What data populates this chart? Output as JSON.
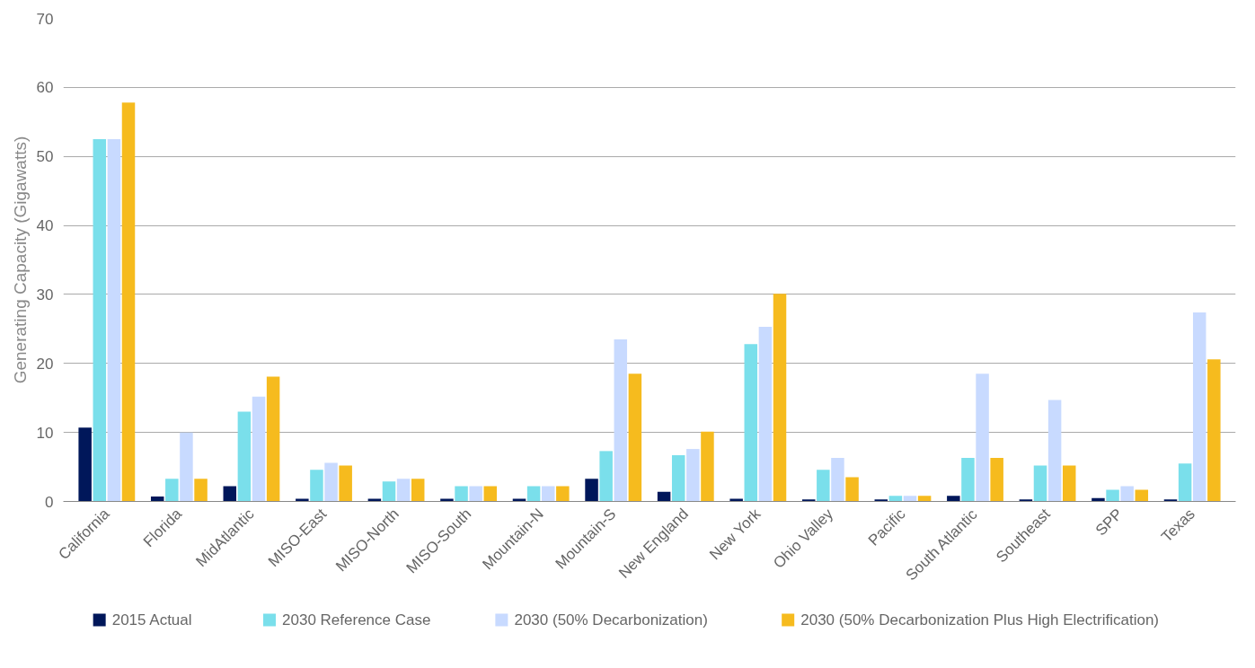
{
  "chart_data": {
    "type": "bar",
    "ylabel": "Generating Capacity (Gigawatts)",
    "categories": [
      "California",
      "Florida",
      "MidAtlantic",
      "MISO-East",
      "MISO-North",
      "MISO-South",
      "Mountain-N",
      "Mountain-S",
      "New England",
      "New York",
      "Ohio Valley",
      "Pacific",
      "South Atlantic",
      "Southeast",
      "SPP",
      "Texas"
    ],
    "series": [
      {
        "name": "2015 Actual",
        "color": "#00175a",
        "values": [
          10.7,
          0.7,
          2.2,
          0.4,
          0.4,
          0.4,
          0.4,
          3.3,
          1.4,
          0.4,
          0.3,
          0.3,
          0.8,
          0.3,
          0.5,
          0.3
        ]
      },
      {
        "name": "2030 Reference Case",
        "color": "#7adfeb",
        "values": [
          52.5,
          3.3,
          13,
          4.6,
          2.9,
          2.2,
          2.2,
          7.3,
          6.7,
          22.8,
          4.6,
          0.8,
          6.3,
          5.2,
          1.7,
          5.5
        ]
      },
      {
        "name": "2030 (50% Decarbonization)",
        "color": "#c8daff",
        "values": [
          52.5,
          10,
          15.2,
          5.6,
          3.3,
          2.2,
          2.2,
          23.5,
          7.6,
          25.3,
          6.3,
          0.8,
          18.5,
          14.7,
          2.2,
          27.4
        ]
      },
      {
        "name": "2030 (50% Decarbonization Plus High Electrification)",
        "color": "#f6bb1e",
        "values": [
          57.8,
          3.3,
          18.1,
          5.2,
          3.3,
          2.2,
          2.2,
          18.5,
          10.1,
          30.1,
          3.5,
          0.8,
          6.3,
          5.2,
          1.7,
          20.6
        ]
      }
    ],
    "ylim": [
      0,
      70
    ],
    "yticks": [
      0,
      10,
      20,
      30,
      40,
      50,
      60,
      70
    ],
    "grid": "y",
    "legend": "bottom"
  }
}
